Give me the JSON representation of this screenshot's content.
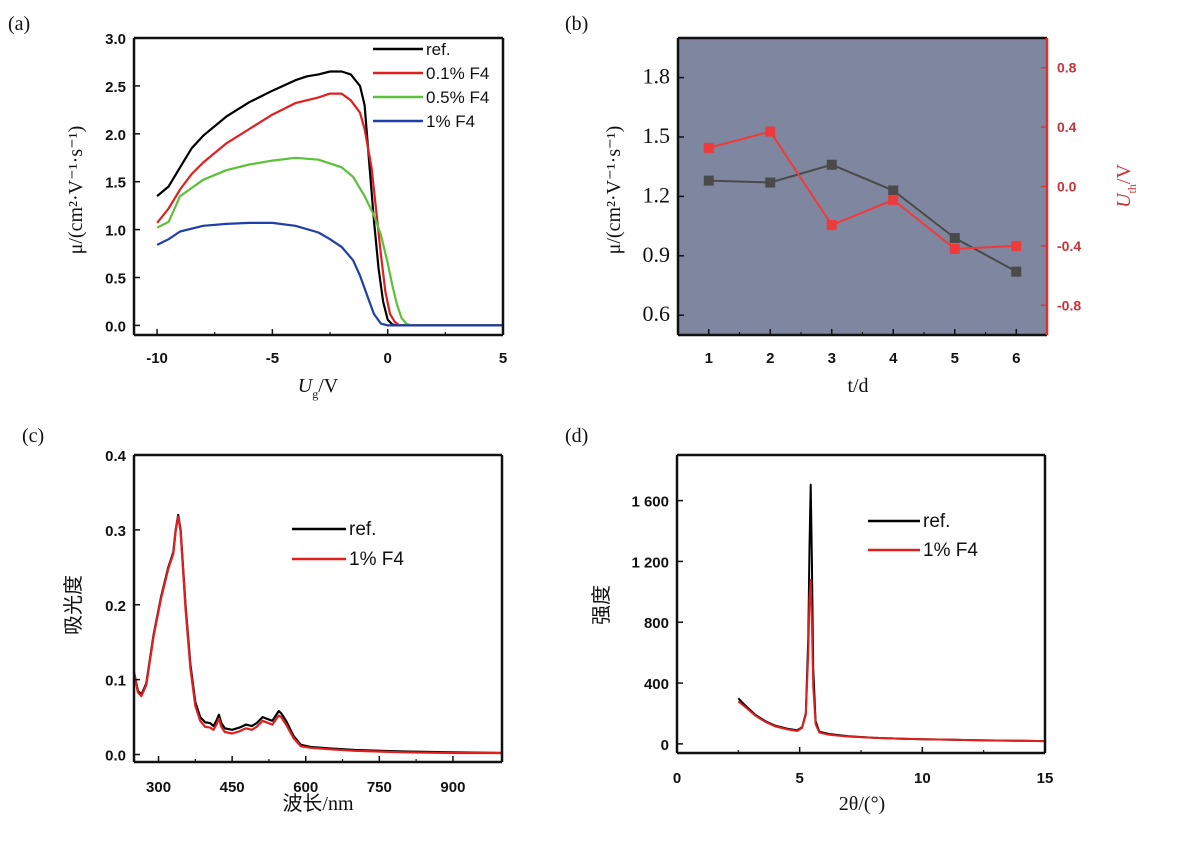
{
  "panels": {
    "a": {
      "label": "(a)"
    },
    "b": {
      "label": "(b)"
    },
    "c": {
      "label": "(c)"
    },
    "d": {
      "label": "(d)"
    }
  },
  "chart_data": [
    {
      "id": "a",
      "type": "line",
      "title": "",
      "xlabel": "U_g/V",
      "xlabel_main": "U",
      "xlabel_sub": "g",
      "xlabel_tail": "/V",
      "ylabel": "μ/(cm²·V⁻¹·s⁻¹)",
      "xlim": [
        -11,
        5
      ],
      "ylim": [
        -0.1,
        3.0
      ],
      "xticks": [
        -10,
        -5,
        0,
        5
      ],
      "xtick_labels": [
        "-10",
        "-5",
        "0",
        "5"
      ],
      "yticks": [
        0.0,
        0.5,
        1.0,
        1.5,
        2.0,
        2.5,
        3.0
      ],
      "ytick_labels": [
        "0.0",
        "0.5",
        "1.0",
        "1.5",
        "2.0",
        "2.5",
        "3.0"
      ],
      "legend_position": "top-right",
      "series": [
        {
          "name": "ref.",
          "color": "#000000",
          "x": [
            -10,
            -9.5,
            -9,
            -8.5,
            -8,
            -7,
            -6,
            -5,
            -4,
            -3.5,
            -3,
            -2.5,
            -2,
            -1.6,
            -1.2,
            -1.0,
            -0.8,
            -0.6,
            -0.4,
            -0.2,
            0,
            0.2,
            0.4,
            5
          ],
          "y": [
            1.35,
            1.45,
            1.65,
            1.85,
            1.98,
            2.18,
            2.33,
            2.45,
            2.56,
            2.6,
            2.62,
            2.65,
            2.65,
            2.62,
            2.5,
            2.3,
            1.7,
            1.1,
            0.6,
            0.25,
            0.06,
            0.01,
            0.0,
            0.0
          ]
        },
        {
          "name": "0.1% F4",
          "color": "#e02020",
          "x": [
            -10,
            -9.5,
            -9,
            -8.5,
            -8,
            -7,
            -6,
            -5,
            -4,
            -3,
            -2.5,
            -2,
            -1.6,
            -1.2,
            -1.0,
            -0.7,
            -0.5,
            -0.3,
            -0.1,
            0.1,
            0.3,
            0.5,
            5
          ],
          "y": [
            1.07,
            1.22,
            1.42,
            1.58,
            1.7,
            1.9,
            2.05,
            2.2,
            2.32,
            2.38,
            2.42,
            2.42,
            2.35,
            2.22,
            2.05,
            1.65,
            1.2,
            0.75,
            0.35,
            0.12,
            0.04,
            0.0,
            0.0
          ]
        },
        {
          "name": "0.5% F4",
          "color": "#5cc03a",
          "x": [
            -10,
            -9.5,
            -9,
            -8,
            -7,
            -6,
            -5,
            -4,
            -3,
            -2,
            -1.5,
            -1,
            -0.6,
            -0.3,
            0,
            0.2,
            0.4,
            0.6,
            0.8,
            1.0,
            5
          ],
          "y": [
            1.02,
            1.08,
            1.35,
            1.52,
            1.62,
            1.68,
            1.72,
            1.75,
            1.73,
            1.65,
            1.55,
            1.35,
            1.15,
            0.95,
            0.65,
            0.42,
            0.22,
            0.08,
            0.02,
            0.0,
            0.0
          ]
        },
        {
          "name": "1% F4",
          "color": "#1f3fa8",
          "x": [
            -10,
            -9.5,
            -9,
            -8,
            -7,
            -6,
            -5,
            -4,
            -3,
            -2.5,
            -2,
            -1.5,
            -1.2,
            -0.9,
            -0.6,
            -0.3,
            0,
            5
          ],
          "y": [
            0.84,
            0.9,
            0.98,
            1.04,
            1.06,
            1.07,
            1.07,
            1.04,
            0.97,
            0.9,
            0.82,
            0.68,
            0.52,
            0.32,
            0.12,
            0.02,
            0.0,
            0.0
          ]
        }
      ]
    },
    {
      "id": "b",
      "type": "line",
      "title": "",
      "xlabel": "t/d",
      "ylabel": "μ/(cm²·V⁻¹·s⁻¹)",
      "ylabel_right": "U_th/V",
      "ylabel_right_main": "U",
      "ylabel_right_sub": "th",
      "ylabel_right_tail": "/V",
      "background": "#7f87a0",
      "xlim": [
        0.5,
        6.5
      ],
      "ylim": [
        0.5,
        2.0
      ],
      "ylim_right": [
        -1.0,
        1.0
      ],
      "xticks": [
        1,
        2,
        3,
        4,
        5,
        6
      ],
      "xtick_labels": [
        "1",
        "2",
        "3",
        "4",
        "5",
        "6"
      ],
      "yticks": [
        0.6,
        0.9,
        1.2,
        1.5,
        1.8
      ],
      "ytick_labels": [
        "0.6",
        "0.9",
        "1.2",
        "1.5",
        "1.8"
      ],
      "yticks_right": [
        -0.8,
        -0.4,
        0.0,
        0.4,
        0.8
      ],
      "ytick_right_labels": [
        "-0.8",
        "-0.4",
        "0.0",
        "0.4",
        "0.8"
      ],
      "series": [
        {
          "name": "μ",
          "axis": "left",
          "color": "#4a4a4a",
          "marker": "square",
          "x": [
            1,
            2,
            3,
            4,
            5,
            6
          ],
          "y": [
            1.28,
            1.27,
            1.36,
            1.23,
            0.99,
            0.82
          ]
        },
        {
          "name": "U_th",
          "axis": "right",
          "color": "#ee3a3a",
          "marker": "square",
          "x": [
            1,
            2,
            3,
            4,
            5,
            6
          ],
          "y": [
            0.26,
            0.37,
            -0.26,
            -0.09,
            -0.42,
            -0.4
          ]
        }
      ]
    },
    {
      "id": "c",
      "type": "line",
      "title": "",
      "xlabel": "波长/nm",
      "ylabel": "吸光度",
      "xlim": [
        250,
        1000
      ],
      "ylim": [
        -0.01,
        0.4
      ],
      "xticks": [
        300,
        450,
        600,
        750,
        900
      ],
      "xtick_labels": [
        "300",
        "450",
        "600",
        "750",
        "900"
      ],
      "yticks": [
        0.0,
        0.1,
        0.2,
        0.3,
        0.4
      ],
      "ytick_labels": [
        "0.0",
        "0.1",
        "0.2",
        "0.3",
        "0.4"
      ],
      "legend_position": "top-right",
      "series": [
        {
          "name": "ref.",
          "color": "#000000",
          "x": [
            250,
            258,
            265,
            275,
            290,
            305,
            320,
            330,
            335,
            340,
            345,
            355,
            365,
            375,
            385,
            395,
            405,
            412,
            418,
            423,
            428,
            435,
            450,
            465,
            478,
            490,
            500,
            512,
            520,
            532,
            545,
            550,
            560,
            575,
            590,
            610,
            650,
            700,
            800,
            900,
            1000
          ],
          "y": [
            0.11,
            0.085,
            0.08,
            0.095,
            0.16,
            0.21,
            0.25,
            0.27,
            0.3,
            0.32,
            0.3,
            0.2,
            0.12,
            0.07,
            0.05,
            0.043,
            0.042,
            0.038,
            0.045,
            0.053,
            0.042,
            0.035,
            0.033,
            0.036,
            0.04,
            0.038,
            0.042,
            0.05,
            0.048,
            0.045,
            0.058,
            0.055,
            0.045,
            0.025,
            0.013,
            0.01,
            0.008,
            0.006,
            0.004,
            0.003,
            0.002
          ]
        },
        {
          "name": "1% F4",
          "color": "#e02020",
          "x": [
            250,
            258,
            265,
            275,
            290,
            305,
            320,
            330,
            335,
            340,
            345,
            355,
            365,
            375,
            385,
            395,
            405,
            412,
            418,
            423,
            428,
            435,
            450,
            465,
            478,
            490,
            500,
            512,
            520,
            532,
            545,
            550,
            560,
            575,
            590,
            610,
            650,
            700,
            800,
            900,
            1000
          ],
          "y": [
            0.11,
            0.083,
            0.078,
            0.093,
            0.158,
            0.208,
            0.248,
            0.268,
            0.3,
            0.318,
            0.298,
            0.195,
            0.115,
            0.065,
            0.045,
            0.037,
            0.036,
            0.033,
            0.04,
            0.048,
            0.037,
            0.03,
            0.028,
            0.031,
            0.035,
            0.033,
            0.037,
            0.045,
            0.043,
            0.04,
            0.052,
            0.05,
            0.04,
            0.022,
            0.011,
            0.009,
            0.007,
            0.005,
            0.003,
            0.002,
            0.002
          ]
        }
      ]
    },
    {
      "id": "d",
      "type": "line",
      "title": "",
      "xlabel": "2θ/(°)",
      "ylabel": "强度",
      "xlim": [
        0,
        15
      ],
      "ylim": [
        -60,
        1900
      ],
      "xticks": [
        0,
        5,
        10,
        15
      ],
      "xtick_labels": [
        "0",
        "5",
        "10",
        "15"
      ],
      "yticks": [
        0,
        400,
        800,
        1200,
        1600
      ],
      "ytick_labels": [
        "0",
        "400",
        "800",
        "1 200",
        "1 600"
      ],
      "legend_position": "top-right",
      "series": [
        {
          "name": "ref.",
          "color": "#000000",
          "x": [
            2.5,
            2.8,
            3.2,
            3.6,
            4.0,
            4.5,
            4.9,
            5.1,
            5.25,
            5.35,
            5.4,
            5.45,
            5.5,
            5.55,
            5.65,
            5.8,
            6.2,
            7,
            8,
            9,
            10,
            11,
            12,
            13,
            14,
            15
          ],
          "y": [
            300,
            250,
            190,
            150,
            120,
            100,
            90,
            110,
            200,
            700,
            1300,
            1705,
            1200,
            500,
            150,
            80,
            65,
            50,
            40,
            35,
            30,
            28,
            25,
            22,
            20,
            18
          ]
        },
        {
          "name": "1% F4",
          "color": "#e02020",
          "x": [
            2.5,
            2.8,
            3.2,
            3.6,
            4.0,
            4.5,
            4.9,
            5.1,
            5.25,
            5.35,
            5.4,
            5.45,
            5.5,
            5.55,
            5.65,
            5.8,
            6.2,
            7,
            8,
            9,
            10,
            11,
            12,
            13,
            14,
            15
          ],
          "y": [
            280,
            240,
            185,
            145,
            115,
            95,
            85,
            105,
            190,
            600,
            950,
            1080,
            800,
            380,
            130,
            75,
            60,
            48,
            40,
            35,
            30,
            28,
            25,
            22,
            20,
            18
          ]
        }
      ]
    }
  ]
}
